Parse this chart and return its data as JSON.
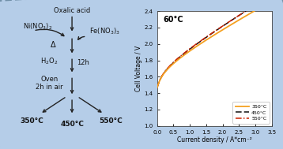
{
  "bg_color": "#b5cde8",
  "plot_bg": "#ffffff",
  "title": "60°C",
  "xlabel": "Current density / A*cm⁻²",
  "ylabel": "Cell Voltage / V",
  "ylim": [
    1.0,
    2.4
  ],
  "xlim": [
    0,
    3.5
  ],
  "yticks": [
    1.0,
    1.2,
    1.4,
    1.6,
    1.8,
    2.0,
    2.2,
    2.4
  ],
  "xticks": [
    0,
    0.5,
    1.0,
    1.5,
    2.0,
    2.5,
    3.0,
    3.5
  ],
  "curve_350_color": "#f5a020",
  "curve_450_color": "#111111",
  "curve_550_color": "#cc2200",
  "legend_labels": [
    "350°C",
    "450°C",
    "550°C"
  ],
  "text_color": "#111111",
  "border_color": "#7090a8",
  "outer_bg": "#b5cde8"
}
